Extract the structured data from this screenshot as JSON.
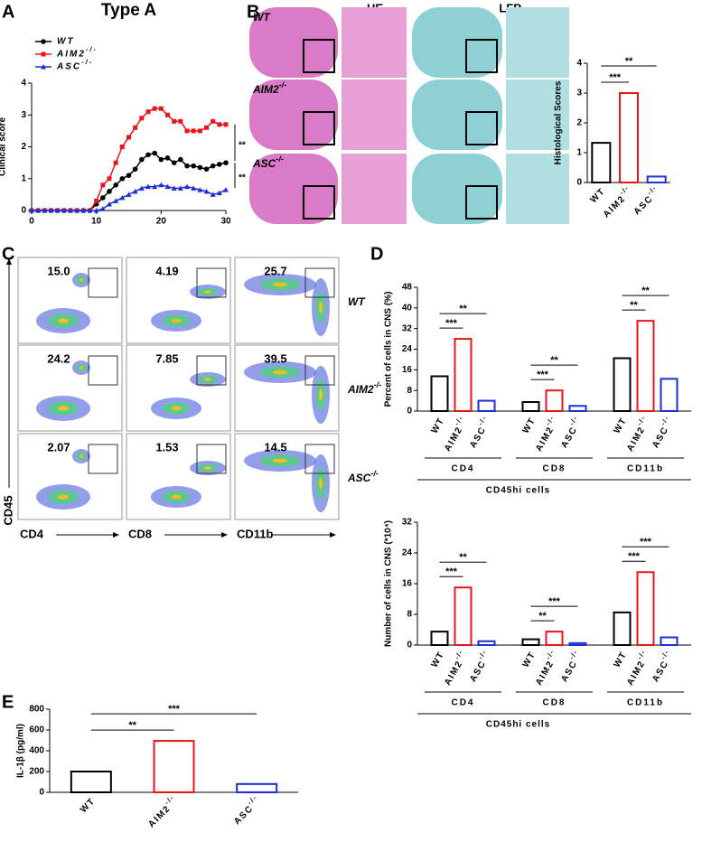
{
  "panel_labels": [
    "A",
    "B",
    "C",
    "D",
    "E"
  ],
  "histology": {
    "columns": [
      "HE",
      "LFB"
    ],
    "rows": [
      "WT",
      "AIM2-/-",
      "ASC-/-"
    ]
  },
  "flow": {
    "rows": [
      "WT",
      "AIM2-/-",
      "ASC-/-"
    ],
    "x_labels": [
      "CD4",
      "CD8",
      "CD11b"
    ],
    "y_label": "CD45",
    "gates": [
      [
        "15.0",
        "4.19",
        "25.7"
      ],
      [
        "24.2",
        "7.85",
        "39.5"
      ],
      [
        "2.07",
        "1.53",
        "14.5"
      ]
    ]
  },
  "chart_data": [
    {
      "type": "line",
      "title": "Type A",
      "x": [
        0,
        1,
        2,
        3,
        4,
        5,
        6,
        7,
        8,
        9,
        10,
        11,
        12,
        13,
        14,
        15,
        16,
        17,
        18,
        19,
        20,
        21,
        22,
        23,
        24,
        25,
        26,
        27,
        28,
        29,
        30
      ],
      "series": [
        {
          "name": "WT",
          "color": "#000000",
          "marker": "circle",
          "values": [
            0,
            0,
            0,
            0,
            0,
            0,
            0,
            0,
            0,
            0,
            0.2,
            0.4,
            0.6,
            0.8,
            1.0,
            1.1,
            1.3,
            1.6,
            1.75,
            1.8,
            1.6,
            1.65,
            1.5,
            1.6,
            1.4,
            1.4,
            1.35,
            1.3,
            1.4,
            1.45,
            1.5
          ]
        },
        {
          "name": "AIM2-/-",
          "color": "#e8161b",
          "marker": "square",
          "values": [
            0,
            0,
            0,
            0,
            0,
            0,
            0,
            0,
            0,
            0,
            0.3,
            0.8,
            1.0,
            1.5,
            2.0,
            2.3,
            2.6,
            2.9,
            3.1,
            3.2,
            3.2,
            3.0,
            2.8,
            2.8,
            2.5,
            2.5,
            2.5,
            2.6,
            2.8,
            2.7,
            2.7
          ]
        },
        {
          "name": "ASC-/-",
          "color": "#1a2fd6",
          "marker": "triangle",
          "values": [
            0,
            0,
            0,
            0,
            0,
            0,
            0,
            0,
            0,
            0,
            0,
            0.05,
            0.2,
            0.3,
            0.4,
            0.5,
            0.6,
            0.7,
            0.75,
            0.75,
            0.8,
            0.75,
            0.7,
            0.7,
            0.75,
            0.7,
            0.65,
            0.6,
            0.5,
            0.55,
            0.65
          ]
        }
      ],
      "xlim": [
        0,
        30
      ],
      "xticks": [
        0,
        10,
        20,
        30
      ],
      "ylim": [
        0,
        4
      ],
      "yticks": [
        0,
        1,
        2,
        3,
        4
      ],
      "y_label": "Clinical score",
      "legend": "upper left",
      "annotations": [
        "**",
        "**"
      ]
    },
    {
      "type": "bar",
      "categories": [
        "WT",
        "AIM2-/-",
        "ASC-/-"
      ],
      "values": [
        1.33,
        3,
        0.2
      ],
      "colors": [
        "#000000",
        "#e8161b",
        "#1a2fd6"
      ],
      "ylim": [
        0,
        4
      ],
      "yticks": [
        0,
        1,
        2,
        3,
        4
      ],
      "y_label": "Histological Scores",
      "annotations": [
        "***",
        "**"
      ]
    },
    {
      "type": "grouped_bar",
      "categories": [
        "CD4",
        "CD8",
        "CD11b"
      ],
      "series": [
        {
          "name": "WT",
          "color": "#000000",
          "values": [
            13.5,
            3.5,
            20.5
          ]
        },
        {
          "name": "AIM2-/-",
          "color": "#e8161b",
          "values": [
            28,
            8,
            35
          ]
        },
        {
          "name": "ASC-/-",
          "color": "#1a2fd6",
          "values": [
            4,
            2,
            12.5
          ]
        }
      ],
      "ylim": [
        0,
        48
      ],
      "yticks": [
        0,
        8,
        16,
        24,
        32,
        40,
        48
      ],
      "y_label": "Percent of cells in CNS (%)",
      "subtitle": "CD45hi cells",
      "annotations": [
        "***",
        "**",
        "***",
        "**",
        "**",
        "**"
      ]
    },
    {
      "type": "grouped_bar",
      "categories": [
        "CD4",
        "CD8",
        "CD11b"
      ],
      "series": [
        {
          "name": "WT",
          "color": "#000000",
          "values": [
            3.5,
            1.5,
            8.5
          ]
        },
        {
          "name": "AIM2-/-",
          "color": "#e8161b",
          "values": [
            15,
            3.5,
            19
          ]
        },
        {
          "name": "ASC-/-",
          "color": "#1a2fd6",
          "values": [
            1,
            0.5,
            2
          ]
        }
      ],
      "ylim": [
        0,
        32
      ],
      "yticks": [
        0,
        8,
        16,
        24,
        32
      ],
      "y_label": "Number of cells in CNS (*10⁴)",
      "subtitle": "CD45hi cells",
      "annotations": [
        "***",
        "**",
        "**",
        "***",
        "***",
        "***"
      ]
    },
    {
      "type": "bar",
      "categories": [
        "WT",
        "AIM2-/-",
        "ASC-/-"
      ],
      "values": [
        200,
        495,
        80
      ],
      "colors": [
        "#000000",
        "#e8161b",
        "#1a2fd6"
      ],
      "ylim": [
        0,
        800
      ],
      "yticks": [
        0,
        200,
        400,
        600,
        800
      ],
      "y_label": "IL-1β (pg/ml)",
      "annotations": [
        "**",
        "***"
      ]
    }
  ]
}
